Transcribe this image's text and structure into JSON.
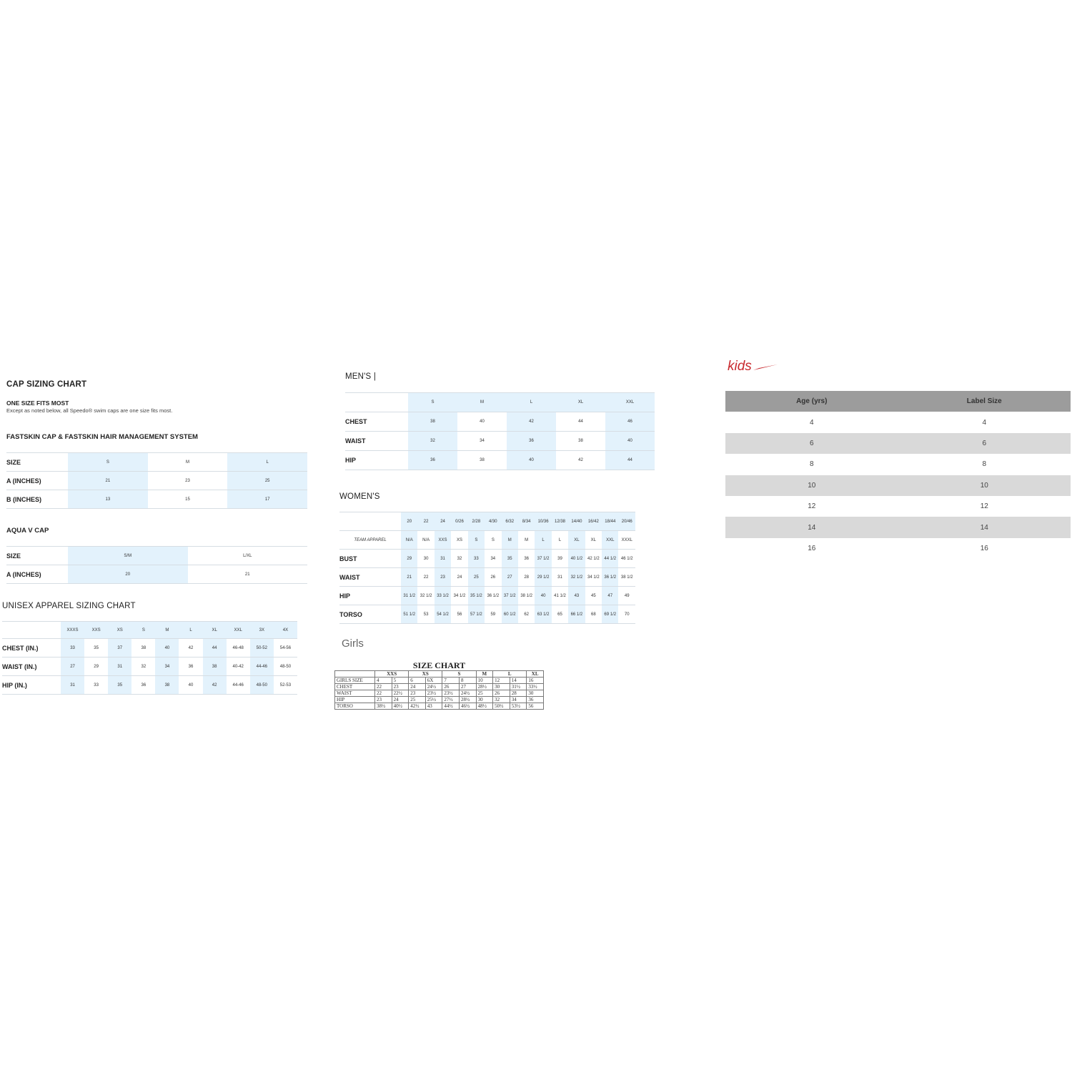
{
  "cap": {
    "title": "CAP SIZING CHART",
    "subtitle": "ONE SIZE FITS MOST",
    "note": "Except as noted below, all Speedo® swim caps are one size fits most.",
    "fastskin": {
      "title": "FASTSKIN CAP & FASTSKIN HAIR MANAGEMENT SYSTEM",
      "rows": [
        [
          "SIZE",
          "S",
          "M",
          "L"
        ],
        [
          "A (INCHES)",
          "21",
          "23",
          "25"
        ],
        [
          "B (INCHES)",
          "13",
          "15",
          "17"
        ]
      ]
    },
    "aqua_v": {
      "title": "AQUA V CAP",
      "rows": [
        [
          "SIZE",
          "S/M",
          "L/XL"
        ],
        [
          "A (INCHES)",
          "20",
          "21"
        ]
      ]
    }
  },
  "unisex": {
    "title": "UNISEX APPAREL SIZING CHART",
    "rows": [
      [
        "",
        "XXXS",
        "XXS",
        "XS",
        "S",
        "M",
        "L",
        "XL",
        "XXL",
        "3X",
        "4X"
      ],
      [
        "CHEST (IN.)",
        "33",
        "35",
        "37",
        "38",
        "40",
        "42",
        "44",
        "46-48",
        "50-52",
        "54-56"
      ],
      [
        "WAIST (IN.)",
        "27",
        "29",
        "31",
        "32",
        "34",
        "36",
        "38",
        "40-42",
        "44-46",
        "48-50"
      ],
      [
        "HIP (IN.)",
        "31",
        "33",
        "35",
        "36",
        "38",
        "40",
        "42",
        "44-46",
        "48-50",
        "52-53"
      ]
    ]
  },
  "mens": {
    "title": "MEN'S |",
    "rows": [
      [
        "",
        "S",
        "M",
        "L",
        "XL",
        "XXL"
      ],
      [
        "CHEST",
        "38",
        "40",
        "42",
        "44",
        "46"
      ],
      [
        "WAIST",
        "32",
        "34",
        "36",
        "38",
        "40"
      ],
      [
        "HIP",
        "36",
        "38",
        "40",
        "42",
        "44"
      ]
    ]
  },
  "womens": {
    "title": "WOMEN'S",
    "rows": [
      [
        "",
        "20",
        "22",
        "24",
        "0/26",
        "2/28",
        "4/30",
        "6/32",
        "8/34",
        "10/36",
        "12/38",
        "14/40",
        "16/42",
        "18/44",
        "20/46"
      ],
      [
        "TEAM APPAREL",
        "N/A",
        "N/A",
        "XXS",
        "XS",
        "S",
        "S",
        "M",
        "M",
        "L",
        "L",
        "XL",
        "XL",
        "XXL",
        "XXXL"
      ],
      [
        "BUST",
        "29",
        "30",
        "31",
        "32",
        "33",
        "34",
        "35",
        "36",
        "37 1/2",
        "39",
        "40 1/2",
        "42 1/2",
        "44 1/2",
        "46 1/2"
      ],
      [
        "WAIST",
        "21",
        "22",
        "23",
        "24",
        "25",
        "26",
        "27",
        "28",
        "29 1/2",
        "31",
        "32 1/2",
        "34 1/2",
        "36 1/2",
        "38 1/2"
      ],
      [
        "HIP",
        "31 1/2",
        "32 1/2",
        "33 1/2",
        "34 1/2",
        "35 1/2",
        "36 1/2",
        "37 1/2",
        "38 1/2",
        "40",
        "41 1/2",
        "43",
        "45",
        "47",
        "49"
      ],
      [
        "TORSO",
        "51 1/2",
        "53",
        "54 1/2",
        "56",
        "57 1/2",
        "59",
        "60 1/2",
        "62",
        "63 1/2",
        "65",
        "66 1/2",
        "68",
        "69 1/2",
        "70"
      ]
    ]
  },
  "girls": {
    "label": "Girls",
    "title": "SIZE CHART",
    "groups": [
      [
        "",
        1
      ],
      [
        "XXS",
        2
      ],
      [
        "XS",
        2
      ],
      [
        "S",
        2
      ],
      [
        "M",
        1
      ],
      [
        "L",
        2
      ],
      [
        "XL",
        1
      ]
    ],
    "rows": [
      [
        "GIRLS SIZE",
        "4",
        "5",
        "6",
        "6X",
        "7",
        "8",
        "10",
        "12",
        "14",
        "16"
      ],
      [
        "CHEST",
        "22",
        "23",
        "24",
        "24½",
        "26",
        "27",
        "28½",
        "30",
        "31½",
        "33½"
      ],
      [
        "WAIST",
        "22",
        "22½",
        "23",
        "23½",
        "23½",
        "24½",
        "25",
        "26",
        "28",
        "30"
      ],
      [
        "HIP",
        "23",
        "24",
        "25",
        "25½",
        "27½",
        "28½",
        "30",
        "32",
        "34",
        "36"
      ],
      [
        "TORSO",
        "38½",
        "40½",
        "42½",
        "43",
        "44½",
        "46½",
        "48½",
        "50½",
        "53½",
        "56"
      ]
    ]
  },
  "kids": {
    "logo_text": "kids",
    "brand_color": "#d0262b",
    "headers": [
      "Age (yrs)",
      "Label Size"
    ],
    "rows": [
      [
        "4",
        "4"
      ],
      [
        "6",
        "6"
      ],
      [
        "8",
        "8"
      ],
      [
        "10",
        "10"
      ],
      [
        "12",
        "12"
      ],
      [
        "14",
        "14"
      ],
      [
        "16",
        "16"
      ]
    ]
  }
}
